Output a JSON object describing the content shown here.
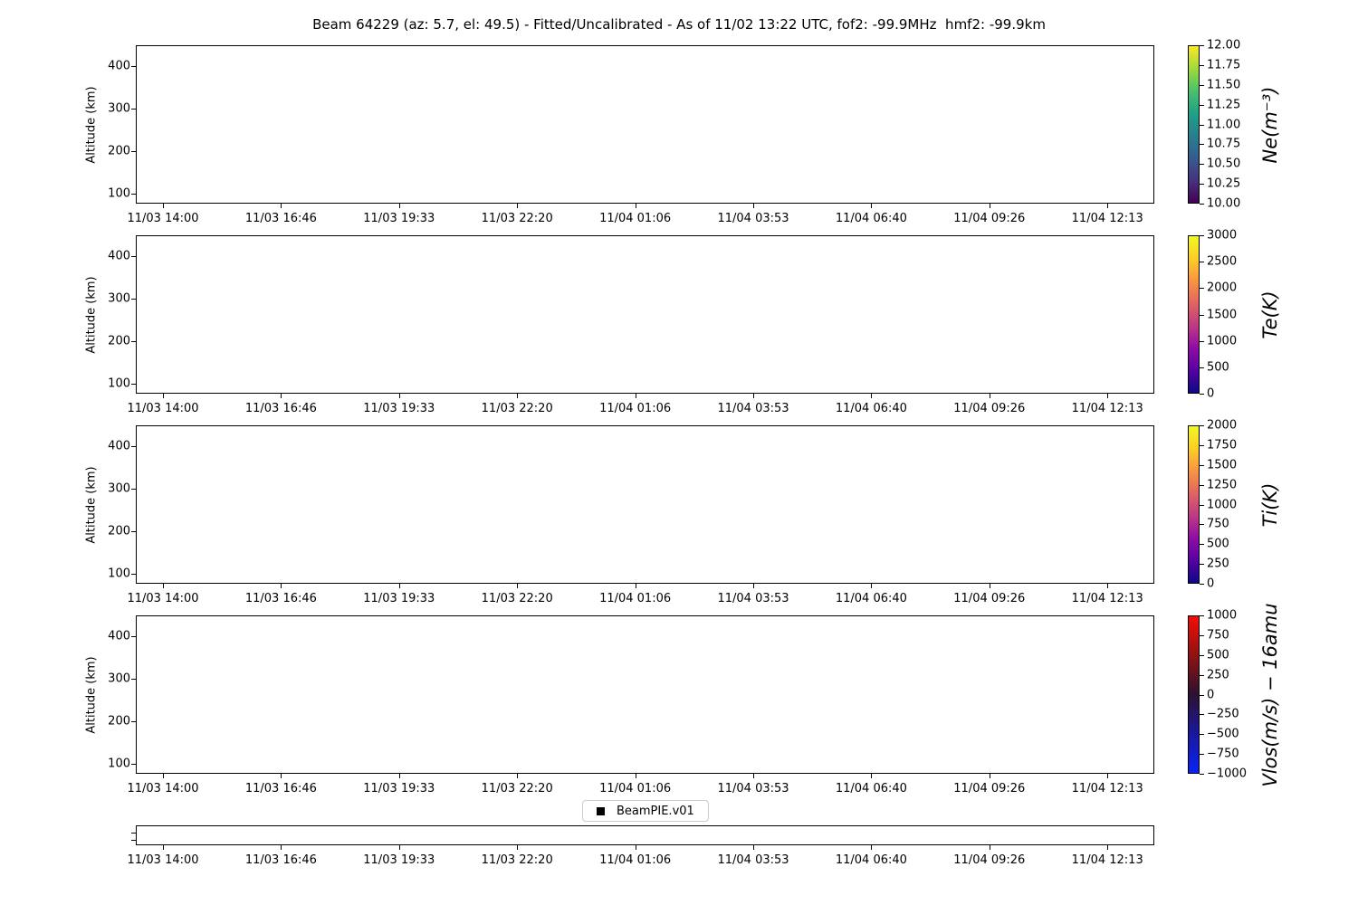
{
  "title": "Beam 64229 (az: 5.7, el: 49.5) - Fitted/Uncalibrated - As of 11/02 13:22 UTC, fof2: -99.9MHz  hmf2: -99.9km",
  "axes": {
    "y_label": "Altitude (km)",
    "y_tick_labels": [
      "400",
      "300",
      "200",
      "100"
    ],
    "x_tick_labels": [
      "11/03 14:00",
      "11/03 16:46",
      "11/03 19:33",
      "11/03 22:20",
      "11/04 01:06",
      "11/04 03:53",
      "11/04 06:40",
      "11/04 09:26",
      "11/04 12:13"
    ]
  },
  "panels": [
    {
      "id": "ne",
      "colorbar": {
        "label": "Ne(m⁻³)",
        "ticks": [
          "12.00",
          "11.75",
          "11.50",
          "11.25",
          "11.00",
          "10.75",
          "10.50",
          "10.25",
          "10.00"
        ],
        "colormap": "viridis",
        "colors": [
          "#440154",
          "#46327e",
          "#365c8d",
          "#277f8e",
          "#1fa187",
          "#4ac16d",
          "#a0da39",
          "#fde725"
        ]
      }
    },
    {
      "id": "te",
      "colorbar": {
        "label": "Te(K)",
        "ticks": [
          "3000",
          "2500",
          "2000",
          "1500",
          "1000",
          "500",
          "0"
        ],
        "colormap": "plasma",
        "colors": [
          "#0d0887",
          "#5601a4",
          "#8f0da4",
          "#bf3984",
          "#e16462",
          "#f89441",
          "#fcce25",
          "#f0f921"
        ]
      }
    },
    {
      "id": "ti",
      "colorbar": {
        "label": "Ti(K)",
        "ticks": [
          "2000",
          "1750",
          "1500",
          "1250",
          "1000",
          "750",
          "500",
          "250",
          "0"
        ],
        "colormap": "plasma",
        "colors": [
          "#0d0887",
          "#5601a4",
          "#8f0da4",
          "#bf3984",
          "#e16462",
          "#f89441",
          "#fcce25",
          "#f0f921"
        ]
      }
    },
    {
      "id": "vlos",
      "colorbar": {
        "label": "Vlos(m/s) − 16amu",
        "ticks": [
          "1000",
          "750",
          "500",
          "250",
          "0",
          "−250",
          "−500",
          "−750",
          "−1000"
        ],
        "colormap": "blue-black-red",
        "colors": [
          "#0823f5",
          "#1a17a0",
          "#2d1130",
          "#8f1212",
          "#f50d06"
        ]
      }
    }
  ],
  "legend": {
    "marker": "black-square",
    "label": "BeamPIE.v01"
  },
  "chart_data": [
    {
      "type": "heatmap",
      "name": "Ne panel",
      "title": "Beam 64229 (az: 5.7, el: 49.5) - Fitted/Uncalibrated - As of 11/02 13:22 UTC, fof2: -99.9MHz  hmf2: -99.9km",
      "xlabel": "",
      "ylabel": "Altitude (km)",
      "y_ticks": [
        100,
        200,
        300,
        400
      ],
      "x_tick_labels": [
        "11/03 14:00",
        "11/03 16:46",
        "11/03 19:33",
        "11/03 22:20",
        "11/04 01:06",
        "11/04 03:53",
        "11/04 06:40",
        "11/04 09:26",
        "11/04 12:13"
      ],
      "colorbar_label": "Ne(m⁻³)",
      "colorbar_ticks": [
        10.0,
        10.25,
        10.5,
        10.75,
        11.0,
        11.25,
        11.5,
        11.75,
        12.0
      ],
      "colorbar_range": [
        10.0,
        12.0
      ],
      "colormap": "viridis",
      "values": []
    },
    {
      "type": "heatmap",
      "name": "Te panel",
      "xlabel": "",
      "ylabel": "Altitude (km)",
      "y_ticks": [
        100,
        200,
        300,
        400
      ],
      "x_tick_labels": [
        "11/03 14:00",
        "11/03 16:46",
        "11/03 19:33",
        "11/03 22:20",
        "11/04 01:06",
        "11/04 03:53",
        "11/04 06:40",
        "11/04 09:26",
        "11/04 12:13"
      ],
      "colorbar_label": "Te(K)",
      "colorbar_ticks": [
        0,
        500,
        1000,
        1500,
        2000,
        2500,
        3000
      ],
      "colorbar_range": [
        0,
        3000
      ],
      "colormap": "plasma",
      "values": []
    },
    {
      "type": "heatmap",
      "name": "Ti panel",
      "xlabel": "",
      "ylabel": "Altitude (km)",
      "y_ticks": [
        100,
        200,
        300,
        400
      ],
      "x_tick_labels": [
        "11/03 14:00",
        "11/03 16:46",
        "11/03 19:33",
        "11/03 22:20",
        "11/04 01:06",
        "11/04 03:53",
        "11/04 06:40",
        "11/04 09:26",
        "11/04 12:13"
      ],
      "colorbar_label": "Ti(K)",
      "colorbar_ticks": [
        0,
        250,
        500,
        750,
        1000,
        1250,
        1500,
        1750,
        2000
      ],
      "colorbar_range": [
        0,
        2000
      ],
      "colormap": "plasma",
      "values": []
    },
    {
      "type": "heatmap",
      "name": "Vlos panel",
      "xlabel": "",
      "ylabel": "Altitude (km)",
      "y_ticks": [
        100,
        200,
        300,
        400
      ],
      "x_tick_labels": [
        "11/03 14:00",
        "11/03 16:46",
        "11/03 19:33",
        "11/03 22:20",
        "11/04 01:06",
        "11/04 03:53",
        "11/04 06:40",
        "11/04 09:26",
        "11/04 12:13"
      ],
      "colorbar_label": "Vlos(m/s) − 16amu",
      "colorbar_ticks": [
        -1000,
        -750,
        -500,
        -250,
        0,
        250,
        500,
        750,
        1000
      ],
      "colorbar_range": [
        -1000,
        1000
      ],
      "colormap": "blue-black-red",
      "legend": [
        "BeamPIE.v01"
      ],
      "values": []
    },
    {
      "type": "heatmap",
      "name": "bottom timeline strip",
      "xlabel": "",
      "ylabel": "",
      "x_tick_labels": [
        "11/03 14:00",
        "11/03 16:46",
        "11/03 19:33",
        "11/03 22:20",
        "11/04 01:06",
        "11/04 03:53",
        "11/04 06:40",
        "11/04 09:26",
        "11/04 12:13"
      ],
      "values": []
    }
  ]
}
